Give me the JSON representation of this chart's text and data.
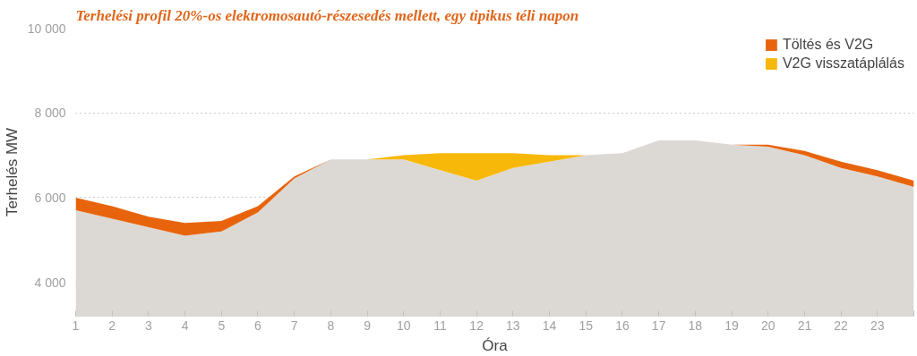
{
  "chart_data": {
    "type": "area",
    "title": "Terhelési profil 20%-os elektromosautó-részesedés mellett, egy tipikus téli napon",
    "xlabel": "Óra",
    "ylabel": "Terhelés MW",
    "x": [
      1,
      2,
      3,
      4,
      5,
      6,
      7,
      8,
      9,
      10,
      11,
      12,
      13,
      14,
      15,
      16,
      17,
      18,
      19,
      20,
      21,
      22,
      23,
      24
    ],
    "series": [
      {
        "color": "#dcd9d4",
        "values": [
          5700,
          5500,
          5300,
          5100,
          5200,
          5650,
          6450,
          6900,
          6900,
          6900,
          6650,
          6400,
          6700,
          6850,
          7000,
          7050,
          7350,
          7350,
          7250,
          7200,
          7000,
          6700,
          6500,
          6250
        ]
      },
      {
        "name": "Töltés és V2G",
        "color": "#e8640c",
        "values": [
          6000,
          5800,
          5550,
          5400,
          5450,
          5800,
          6500,
          6900,
          null,
          null,
          null,
          null,
          null,
          null,
          null,
          null,
          null,
          null,
          7250,
          7250,
          7100,
          6850,
          6650,
          6400
        ]
      },
      {
        "name": "V2G visszatáplálás",
        "color": "#f8b80a",
        "x": [
          9,
          10,
          11,
          12,
          13,
          14,
          15
        ],
        "values": [
          6900,
          7000,
          7050,
          7050,
          7050,
          7000,
          7000
        ]
      }
    ],
    "xlim": [
      1,
      24
    ],
    "ylim": [
      3200,
      10000
    ],
    "xticks": [
      1,
      2,
      3,
      4,
      5,
      6,
      7,
      8,
      9,
      10,
      11,
      12,
      13,
      14,
      15,
      16,
      17,
      18,
      19,
      20,
      21,
      22,
      23,
      {
        "value": 24,
        "label": null
      }
    ],
    "yticks": [
      {
        "value": 4000,
        "label": "4 000"
      },
      {
        "value": 6000,
        "label": "6 000"
      },
      {
        "value": 8000,
        "label": "8 000"
      },
      {
        "value": 10000,
        "label": "10 000"
      }
    ],
    "grid": "y",
    "legend": "top right"
  }
}
